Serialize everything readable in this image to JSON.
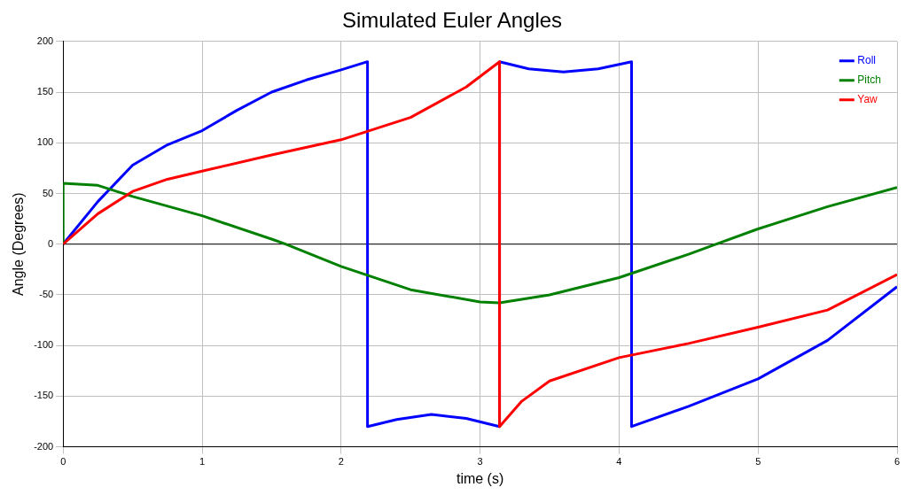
{
  "chart_data": {
    "type": "line",
    "title": "Simulated Euler Angles",
    "xlabel": "time (s)",
    "ylabel": "Angle (Degrees)",
    "xlim": [
      0,
      6
    ],
    "xticks": [
      0,
      1,
      2,
      3,
      4,
      5,
      6
    ],
    "ylim": [
      -200,
      200
    ],
    "yticks": [
      -200,
      -150,
      -100,
      -50,
      0,
      50,
      100,
      150,
      200
    ],
    "grid": true,
    "legend": "top right",
    "marker": "none",
    "line_style": "solid",
    "ref_lines": [
      {
        "axis": "y",
        "value": 0,
        "color": "#000000"
      }
    ],
    "series": [
      {
        "name": "Roll",
        "color": "#0000ff",
        "x": [
          0,
          0.25,
          0.5,
          0.75,
          1,
          1.25,
          1.5,
          1.75,
          2,
          2.19,
          2.19,
          2.4,
          2.65,
          2.9,
          3.14,
          3.14,
          3.35,
          3.6,
          3.85,
          4.09,
          4.09,
          4.5,
          5,
          5.5,
          6
        ],
        "values": [
          0,
          42,
          78,
          98,
          112,
          132,
          150,
          162,
          172,
          180,
          -180,
          -173,
          -168,
          -172,
          -180,
          180,
          173,
          170,
          173,
          180,
          -180,
          -160,
          -133,
          -95,
          -42
        ]
      },
      {
        "name": "Pitch",
        "color": "#008000",
        "x": [
          0,
          0,
          0.25,
          0.5,
          1,
          1.5,
          1.6,
          2,
          2.5,
          3,
          3.14,
          3.5,
          4,
          4.5,
          4.7,
          5,
          5.5,
          6
        ],
        "values": [
          0,
          60,
          58,
          47,
          28,
          5,
          0,
          -22,
          -45,
          -57,
          -58,
          -50,
          -33,
          -10,
          0,
          15,
          37,
          56
        ]
      },
      {
        "name": "Yaw",
        "color": "#ff0000",
        "x": [
          0,
          0.25,
          0.5,
          0.75,
          1,
          1.5,
          2,
          2.5,
          2.9,
          3.14,
          3.14,
          3.3,
          3.5,
          4,
          4.5,
          5,
          5.5,
          6
        ],
        "values": [
          0,
          30,
          52,
          64,
          72,
          88,
          103,
          125,
          155,
          180,
          -180,
          -155,
          -135,
          -112,
          -98,
          -82,
          -65,
          -30
        ]
      }
    ]
  }
}
